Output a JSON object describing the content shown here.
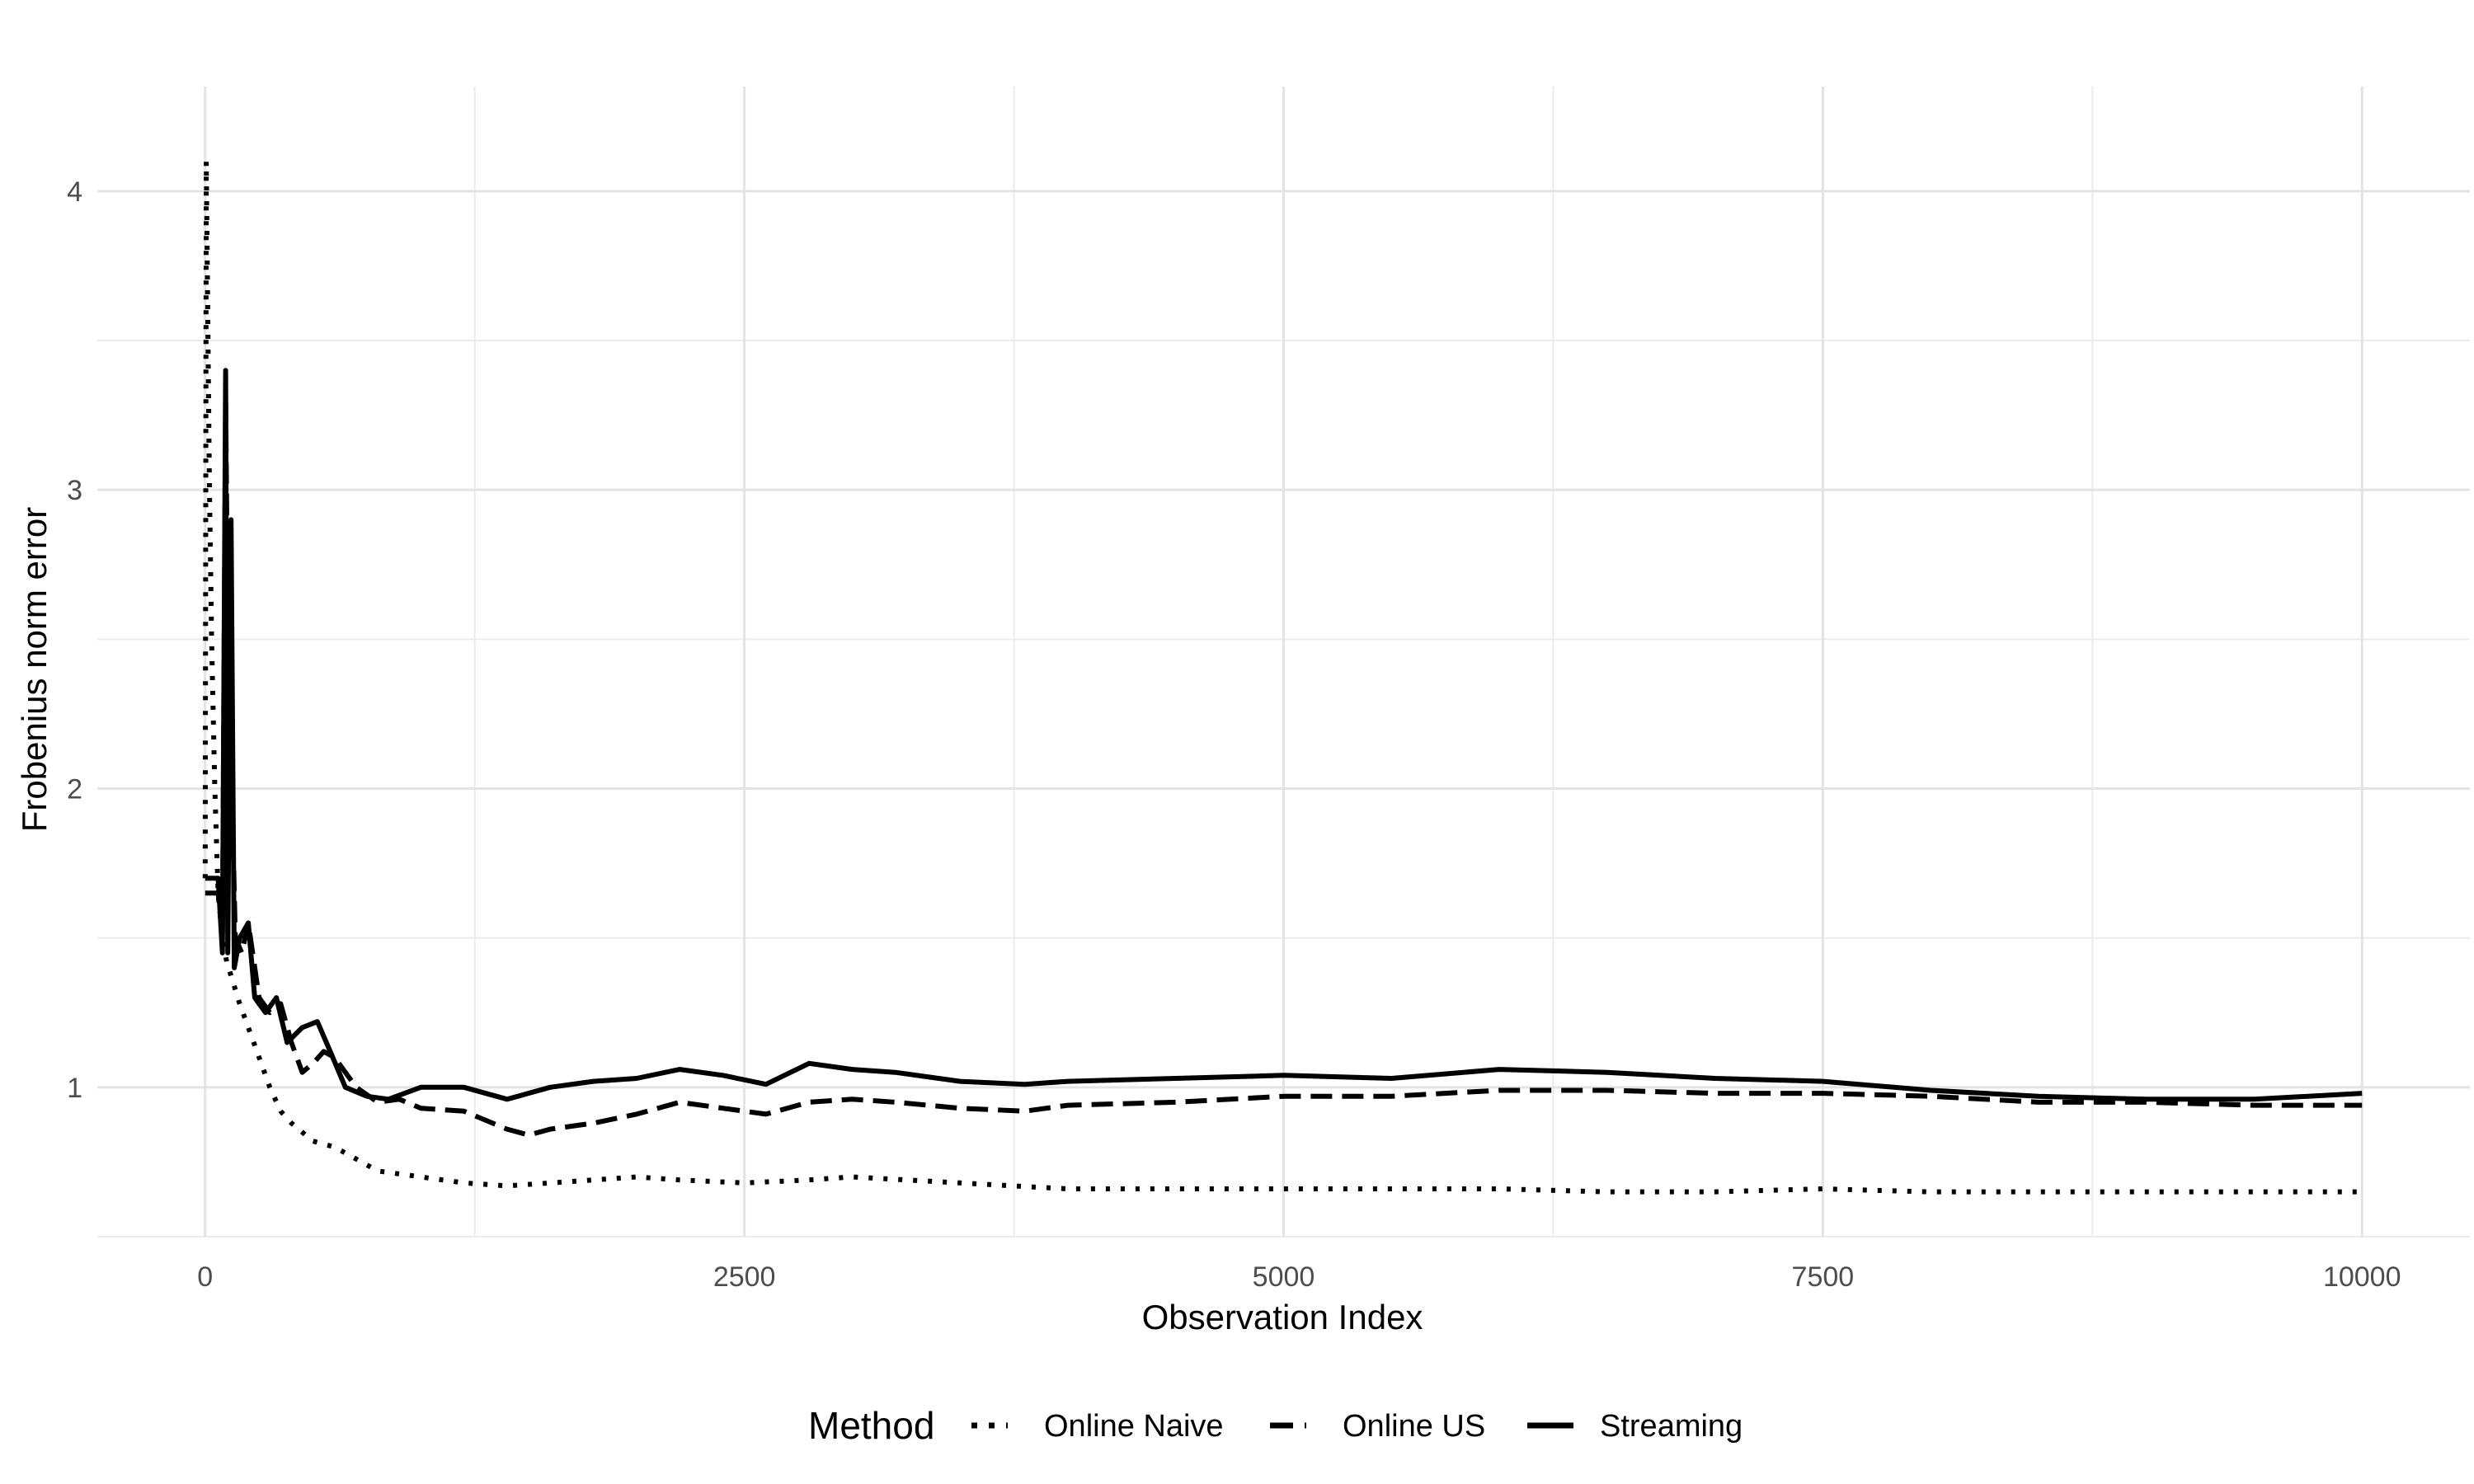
{
  "chart_data": {
    "type": "line",
    "title": "",
    "xlabel": "Observation Index",
    "ylabel": "Frobenius norm error",
    "xlim": [
      -500,
      10500
    ],
    "ylim": [
      0.5,
      4.35
    ],
    "x_ticks": [
      0,
      2500,
      5000,
      7500,
      10000
    ],
    "x_tick_labels": [
      "0",
      "2500",
      "5000",
      "7500",
      "10000"
    ],
    "y_ticks": [
      1,
      2,
      3,
      4
    ],
    "y_tick_labels": [
      "1",
      "2",
      "3",
      "4"
    ],
    "grid": true,
    "legend": {
      "title": "Method",
      "position": "bottom"
    },
    "series": [
      {
        "name": "Online Naive",
        "linetype": "dotted",
        "color": "#000000",
        "points": [
          [
            0,
            1.7
          ],
          [
            5,
            4.1
          ],
          [
            12,
            3.6
          ],
          [
            20,
            3.0
          ],
          [
            30,
            2.5
          ],
          [
            45,
            2.0
          ],
          [
            60,
            1.65
          ],
          [
            80,
            1.5
          ],
          [
            100,
            1.42
          ],
          [
            130,
            1.35
          ],
          [
            160,
            1.28
          ],
          [
            200,
            1.2
          ],
          [
            250,
            1.1
          ],
          [
            300,
            1.0
          ],
          [
            350,
            0.92
          ],
          [
            400,
            0.88
          ],
          [
            500,
            0.82
          ],
          [
            600,
            0.8
          ],
          [
            700,
            0.76
          ],
          [
            800,
            0.72
          ],
          [
            900,
            0.71
          ],
          [
            1000,
            0.7
          ],
          [
            1200,
            0.68
          ],
          [
            1400,
            0.67
          ],
          [
            1600,
            0.68
          ],
          [
            1800,
            0.69
          ],
          [
            2000,
            0.7
          ],
          [
            2200,
            0.69
          ],
          [
            2500,
            0.68
          ],
          [
            2800,
            0.69
          ],
          [
            3000,
            0.7
          ],
          [
            3500,
            0.68
          ],
          [
            4000,
            0.66
          ],
          [
            4500,
            0.66
          ],
          [
            5000,
            0.66
          ],
          [
            5500,
            0.66
          ],
          [
            6000,
            0.66
          ],
          [
            6500,
            0.65
          ],
          [
            7000,
            0.65
          ],
          [
            7500,
            0.66
          ],
          [
            8000,
            0.65
          ],
          [
            8500,
            0.65
          ],
          [
            9000,
            0.65
          ],
          [
            9500,
            0.65
          ],
          [
            10000,
            0.65
          ]
        ]
      },
      {
        "name": "Online US",
        "linetype": "dashed",
        "color": "#000000",
        "points": [
          [
            0,
            1.65
          ],
          [
            60,
            1.65
          ],
          [
            80,
            1.5
          ],
          [
            95,
            3.3
          ],
          [
            110,
            2.2
          ],
          [
            125,
            1.95
          ],
          [
            140,
            1.5
          ],
          [
            170,
            1.45
          ],
          [
            200,
            1.55
          ],
          [
            250,
            1.3
          ],
          [
            300,
            1.25
          ],
          [
            350,
            1.28
          ],
          [
            400,
            1.15
          ],
          [
            450,
            1.05
          ],
          [
            500,
            1.08
          ],
          [
            550,
            1.12
          ],
          [
            600,
            1.1
          ],
          [
            700,
            1.0
          ],
          [
            800,
            0.95
          ],
          [
            900,
            0.96
          ],
          [
            1000,
            0.93
          ],
          [
            1200,
            0.92
          ],
          [
            1400,
            0.86
          ],
          [
            1500,
            0.84
          ],
          [
            1600,
            0.86
          ],
          [
            1800,
            0.88
          ],
          [
            2000,
            0.91
          ],
          [
            2200,
            0.95
          ],
          [
            2400,
            0.93
          ],
          [
            2600,
            0.91
          ],
          [
            2800,
            0.95
          ],
          [
            3000,
            0.96
          ],
          [
            3200,
            0.95
          ],
          [
            3500,
            0.93
          ],
          [
            3800,
            0.92
          ],
          [
            4000,
            0.94
          ],
          [
            4500,
            0.95
          ],
          [
            5000,
            0.97
          ],
          [
            5500,
            0.97
          ],
          [
            6000,
            0.99
          ],
          [
            6500,
            0.99
          ],
          [
            7000,
            0.98
          ],
          [
            7500,
            0.98
          ],
          [
            8000,
            0.97
          ],
          [
            8500,
            0.95
          ],
          [
            9000,
            0.95
          ],
          [
            9500,
            0.94
          ],
          [
            10000,
            0.94
          ]
        ]
      },
      {
        "name": "Streaming",
        "linetype": "solid",
        "color": "#000000",
        "points": [
          [
            0,
            1.7
          ],
          [
            60,
            1.7
          ],
          [
            80,
            1.45
          ],
          [
            95,
            3.4
          ],
          [
            105,
            1.45
          ],
          [
            120,
            2.9
          ],
          [
            135,
            1.4
          ],
          [
            160,
            1.5
          ],
          [
            200,
            1.55
          ],
          [
            230,
            1.3
          ],
          [
            280,
            1.25
          ],
          [
            330,
            1.3
          ],
          [
            380,
            1.15
          ],
          [
            450,
            1.2
          ],
          [
            520,
            1.22
          ],
          [
            580,
            1.12
          ],
          [
            650,
            1.0
          ],
          [
            750,
            0.97
          ],
          [
            850,
            0.96
          ],
          [
            1000,
            1.0
          ],
          [
            1200,
            1.0
          ],
          [
            1400,
            0.96
          ],
          [
            1600,
            1.0
          ],
          [
            1800,
            1.02
          ],
          [
            2000,
            1.03
          ],
          [
            2200,
            1.06
          ],
          [
            2400,
            1.04
          ],
          [
            2600,
            1.01
          ],
          [
            2800,
            1.08
          ],
          [
            3000,
            1.06
          ],
          [
            3200,
            1.05
          ],
          [
            3500,
            1.02
          ],
          [
            3800,
            1.01
          ],
          [
            4000,
            1.02
          ],
          [
            4500,
            1.03
          ],
          [
            5000,
            1.04
          ],
          [
            5500,
            1.03
          ],
          [
            6000,
            1.06
          ],
          [
            6500,
            1.05
          ],
          [
            7000,
            1.03
          ],
          [
            7500,
            1.02
          ],
          [
            8000,
            0.99
          ],
          [
            8500,
            0.97
          ],
          [
            9000,
            0.96
          ],
          [
            9500,
            0.96
          ],
          [
            10000,
            0.98
          ]
        ]
      }
    ]
  }
}
